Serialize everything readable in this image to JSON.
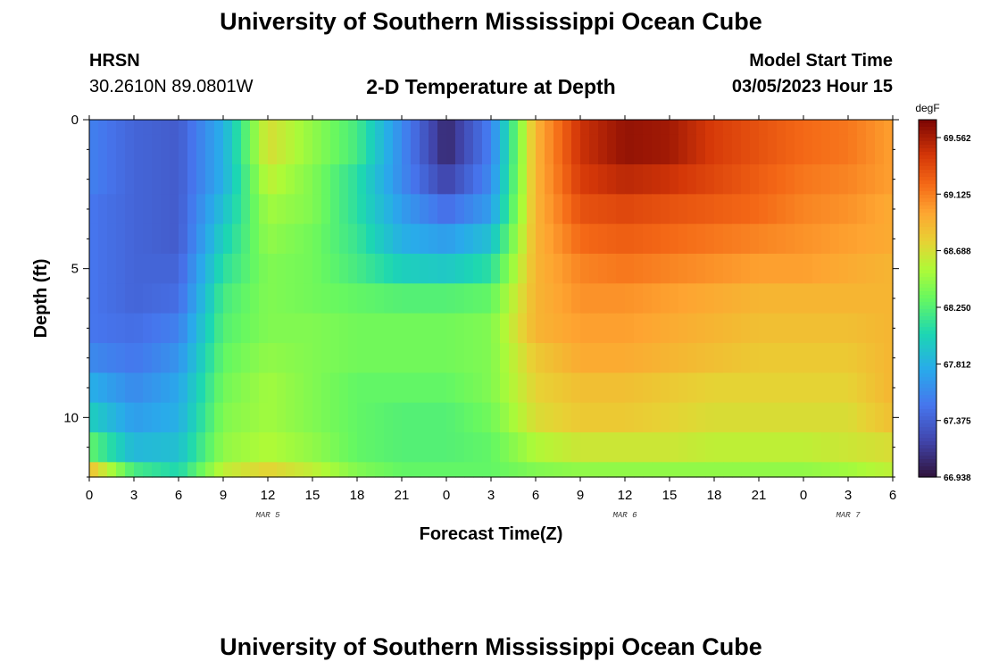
{
  "header": {
    "title": "University of Southern Mississippi Ocean Cube",
    "station_name": "HRSN",
    "station_coords": "30.2610N  89.0801W",
    "model_label": "Model Start Time",
    "model_date": "03/05/2023 Hour 15"
  },
  "footer": {
    "title": "University of Southern Mississippi Ocean Cube"
  },
  "chart_data": {
    "type": "heatmap",
    "title": "2-D Temperature at Depth",
    "xlabel": "Forecast Time(Z)",
    "ylabel": "Depth (ft)",
    "x_tick_labels": [
      "0",
      "3",
      "6",
      "9",
      "12",
      "15",
      "18",
      "21",
      "0",
      "3",
      "6",
      "9",
      "12",
      "15",
      "18",
      "21",
      "0",
      "3",
      "6"
    ],
    "x_range_hours": [
      0,
      54
    ],
    "date_labels": [
      {
        "label": "MAR 5",
        "hour": 12
      },
      {
        "label": "MAR 6",
        "hour": 36
      },
      {
        "label": "MAR 7",
        "hour": 51
      }
    ],
    "y_tick_labels": [
      "0",
      "5",
      "10"
    ],
    "y_range": [
      0,
      12
    ],
    "y_inverted": true,
    "colorbar": {
      "unit": "degF",
      "min": 66.938,
      "max": 69.7,
      "tick_labels": [
        "69.562",
        "69.125",
        "68.688",
        "68.250",
        "67.812",
        "67.375",
        "66.938"
      ],
      "tick_values": [
        69.562,
        69.125,
        68.688,
        68.25,
        67.812,
        67.375,
        66.938
      ]
    },
    "depth_layers": [
      0,
      0.5,
      1.5,
      2.5,
      3.5,
      4.5,
      5.5,
      6.5,
      7.5,
      8.5,
      9.5,
      10.5,
      11.5
    ],
    "time_hours": [
      0,
      3,
      6,
      9,
      12,
      15,
      18,
      21,
      24,
      27,
      30,
      33,
      36,
      39,
      42,
      45,
      48,
      51,
      54
    ],
    "temperature_profile_degF": [
      [
        67.55,
        67.4,
        67.35,
        67.8,
        68.7,
        68.45,
        68.2,
        67.6,
        67.05,
        67.55,
        68.9,
        69.45,
        69.62,
        69.58,
        69.4,
        69.3,
        69.2,
        69.15,
        69.0
      ],
      [
        67.55,
        67.4,
        67.35,
        67.8,
        68.7,
        68.45,
        68.2,
        67.6,
        67.05,
        67.55,
        68.9,
        69.45,
        69.62,
        69.58,
        69.4,
        69.3,
        69.2,
        69.15,
        69.0
      ],
      [
        67.55,
        67.4,
        67.35,
        67.8,
        68.6,
        68.4,
        68.1,
        67.6,
        67.2,
        67.6,
        68.9,
        69.4,
        69.5,
        69.45,
        69.35,
        69.25,
        69.15,
        69.1,
        69.0
      ],
      [
        67.5,
        67.4,
        67.35,
        67.9,
        68.5,
        68.4,
        68.1,
        67.7,
        67.45,
        67.7,
        68.9,
        69.3,
        69.35,
        69.3,
        69.25,
        69.2,
        69.1,
        69.05,
        68.95
      ],
      [
        67.5,
        67.4,
        67.35,
        68.0,
        68.45,
        68.35,
        68.15,
        67.8,
        67.7,
        67.9,
        68.9,
        69.2,
        69.25,
        69.2,
        69.15,
        69.1,
        69.05,
        69.0,
        68.95
      ],
      [
        67.5,
        67.4,
        67.4,
        68.1,
        68.4,
        68.35,
        68.2,
        68.0,
        67.95,
        68.1,
        68.9,
        69.1,
        69.15,
        69.1,
        69.05,
        69.0,
        69.0,
        68.95,
        68.9
      ],
      [
        67.5,
        67.4,
        67.45,
        68.2,
        68.4,
        68.35,
        68.3,
        68.25,
        68.25,
        68.3,
        68.9,
        69.05,
        69.05,
        69.0,
        68.95,
        68.9,
        68.9,
        68.9,
        68.9
      ],
      [
        67.5,
        67.45,
        67.55,
        68.25,
        68.4,
        68.4,
        68.35,
        68.35,
        68.35,
        68.4,
        68.9,
        69.0,
        69.0,
        68.95,
        68.9,
        68.85,
        68.85,
        68.85,
        68.9
      ],
      [
        67.6,
        67.5,
        67.65,
        68.3,
        68.45,
        68.4,
        68.35,
        68.35,
        68.35,
        68.4,
        68.8,
        68.95,
        68.95,
        68.9,
        68.85,
        68.8,
        68.8,
        68.8,
        68.9
      ],
      [
        67.8,
        67.6,
        67.75,
        68.35,
        68.5,
        68.4,
        68.3,
        68.3,
        68.3,
        68.4,
        68.75,
        68.85,
        68.85,
        68.8,
        68.75,
        68.75,
        68.75,
        68.75,
        68.9
      ],
      [
        68.0,
        67.7,
        67.8,
        68.4,
        68.5,
        68.4,
        68.3,
        68.25,
        68.25,
        68.35,
        68.7,
        68.8,
        68.8,
        68.75,
        68.7,
        68.7,
        68.7,
        68.7,
        68.85
      ],
      [
        68.3,
        67.85,
        67.9,
        68.45,
        68.55,
        68.45,
        68.3,
        68.25,
        68.25,
        68.3,
        68.55,
        68.65,
        68.65,
        68.65,
        68.6,
        68.6,
        68.6,
        68.65,
        68.7
      ],
      [
        68.85,
        68.2,
        68.05,
        68.6,
        68.75,
        68.6,
        68.4,
        68.3,
        68.3,
        68.3,
        68.4,
        68.45,
        68.45,
        68.45,
        68.45,
        68.45,
        68.45,
        68.5,
        68.6
      ]
    ]
  }
}
